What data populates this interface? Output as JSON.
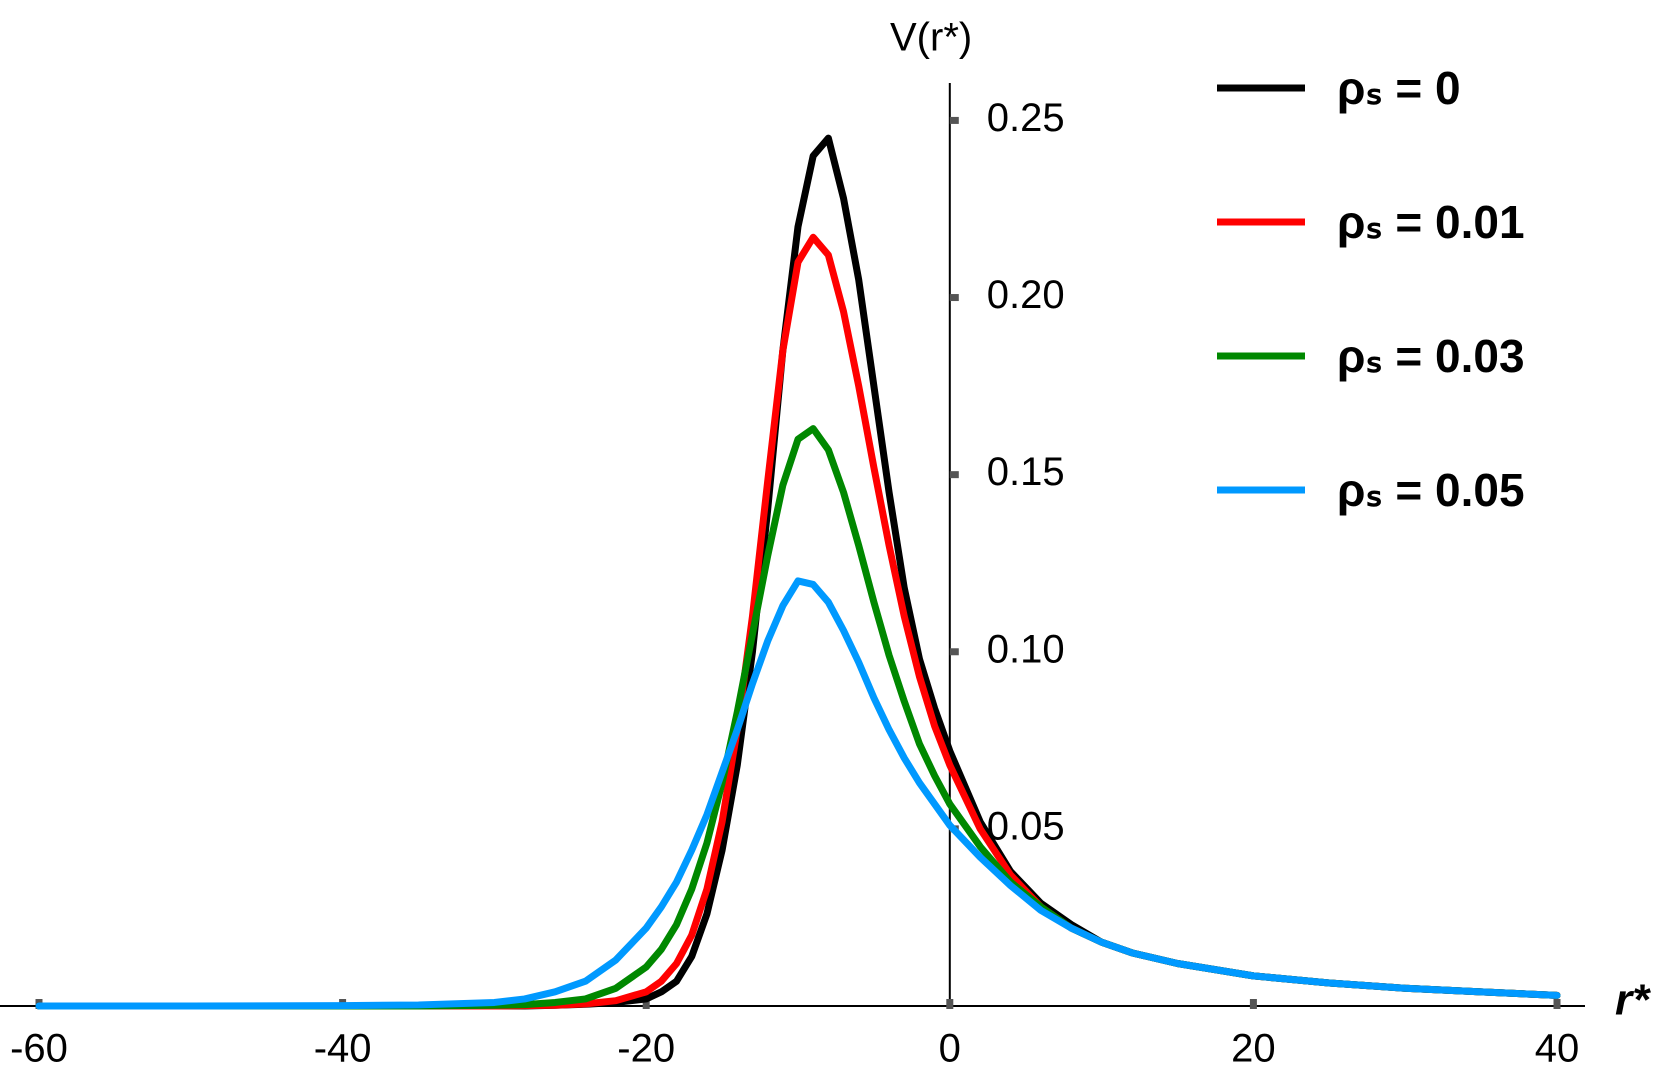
{
  "chart_data": {
    "type": "line",
    "x_label": "r*",
    "y_label": "V(r*)",
    "x": [
      -60,
      -50,
      -40,
      -35,
      -30,
      -28,
      -26,
      -24,
      -22,
      -20,
      -19,
      -18,
      -17,
      -16,
      -15,
      -14,
      -13,
      -12,
      -11,
      -10,
      -9,
      -8,
      -7,
      -6,
      -5,
      -4,
      -3,
      -2,
      -1,
      0,
      2,
      4,
      6,
      8,
      10,
      12,
      15,
      20,
      25,
      30,
      35,
      40
    ],
    "series": [
      {
        "name": "ρₛ = 0",
        "color": "#000000",
        "values": [
          0,
          0,
          0,
          0,
          0,
          0,
          0.0002,
          0.0005,
          0.001,
          0.002,
          0.004,
          0.007,
          0.014,
          0.026,
          0.044,
          0.068,
          0.1,
          0.14,
          0.185,
          0.22,
          0.24,
          0.245,
          0.228,
          0.205,
          0.175,
          0.145,
          0.118,
          0.098,
          0.084,
          0.072,
          0.052,
          0.038,
          0.029,
          0.023,
          0.018,
          0.015,
          0.012,
          0.0085,
          0.0065,
          0.005,
          0.004,
          0.003
        ]
      },
      {
        "name": "ρₛ = 0.01",
        "color": "#ff0000",
        "values": [
          0,
          0,
          0,
          0,
          0,
          0.0001,
          0.0002,
          0.0006,
          0.0015,
          0.004,
          0.007,
          0.012,
          0.02,
          0.033,
          0.052,
          0.078,
          0.11,
          0.148,
          0.185,
          0.21,
          0.217,
          0.212,
          0.196,
          0.175,
          0.152,
          0.13,
          0.11,
          0.093,
          0.079,
          0.068,
          0.05,
          0.037,
          0.028,
          0.022,
          0.018,
          0.015,
          0.012,
          0.0085,
          0.0065,
          0.005,
          0.004,
          0.003
        ]
      },
      {
        "name": "ρₛ = 0.03",
        "color": "#008800",
        "values": [
          0,
          0,
          0,
          0,
          0.0002,
          0.0004,
          0.001,
          0.002,
          0.005,
          0.011,
          0.016,
          0.023,
          0.033,
          0.046,
          0.063,
          0.083,
          0.105,
          0.127,
          0.147,
          0.16,
          0.163,
          0.157,
          0.145,
          0.13,
          0.114,
          0.099,
          0.086,
          0.074,
          0.065,
          0.057,
          0.045,
          0.035,
          0.028,
          0.022,
          0.018,
          0.015,
          0.012,
          0.0085,
          0.0065,
          0.005,
          0.004,
          0.003
        ]
      },
      {
        "name": "ρₛ = 0.05",
        "color": "#0099ff",
        "values": [
          0,
          0,
          0.0001,
          0.0003,
          0.001,
          0.002,
          0.004,
          0.007,
          0.013,
          0.022,
          0.028,
          0.035,
          0.044,
          0.054,
          0.066,
          0.078,
          0.091,
          0.103,
          0.113,
          0.12,
          0.119,
          0.114,
          0.106,
          0.097,
          0.087,
          0.078,
          0.07,
          0.063,
          0.057,
          0.051,
          0.042,
          0.034,
          0.027,
          0.022,
          0.018,
          0.015,
          0.012,
          0.0085,
          0.0065,
          0.005,
          0.004,
          0.003
        ]
      }
    ],
    "xlim": [
      -60,
      40
    ],
    "ylim": [
      0,
      0.26
    ],
    "xticks": [
      -60,
      -40,
      -20,
      0,
      20,
      40
    ],
    "yticks": [
      0.05,
      {
        "value": 0.1,
        "label": "0.10"
      },
      0.15,
      {
        "value": 0.2,
        "label": "0.20"
      },
      0.25
    ],
    "legend": "top-right"
  }
}
